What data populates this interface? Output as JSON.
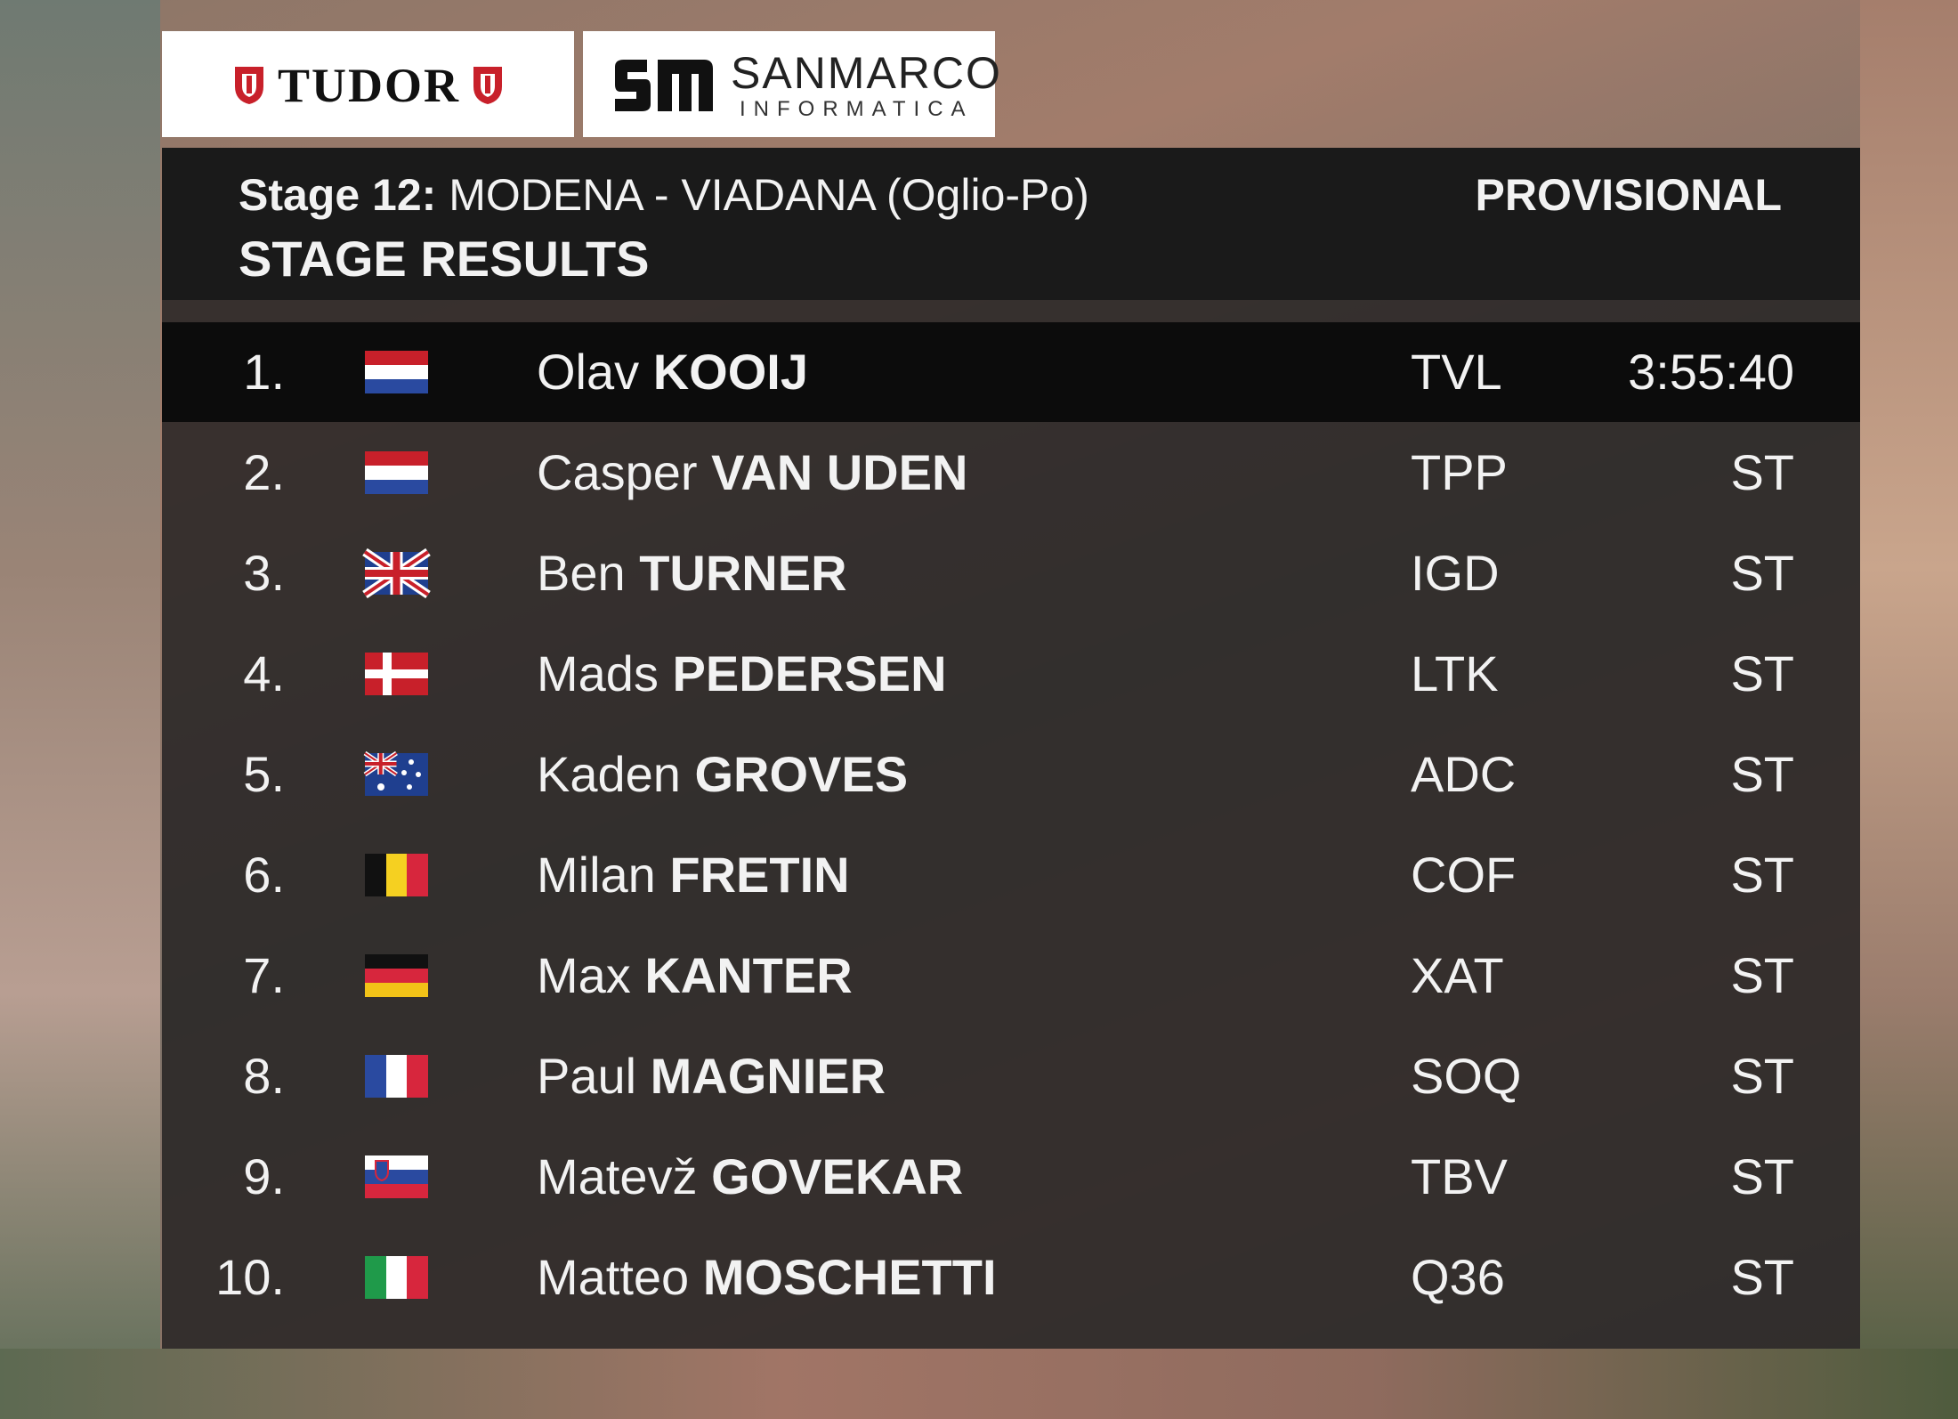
{
  "sponsors": [
    "TUDOR",
    "SANMARCO",
    "INFORMATICA"
  ],
  "header": {
    "stage": "Stage 12:",
    "route": "MODENA - VIADANA (Oglio-Po)",
    "title": "STAGE RESULTS",
    "status": "PROVISIONAL"
  },
  "table": {
    "rows": [
      [
        "1.",
        "Olav",
        "KOOIJ",
        "TVL",
        "3:55:40"
      ],
      [
        "2.",
        "Casper",
        "VAN UDEN",
        "TPP",
        "ST"
      ],
      [
        "3.",
        "Ben",
        "TURNER",
        "IGD",
        "ST"
      ],
      [
        "4.",
        "Mads",
        "PEDERSEN",
        "LTK",
        "ST"
      ],
      [
        "5.",
        "Kaden",
        "GROVES",
        "ADC",
        "ST"
      ],
      [
        "6.",
        "Milan",
        "FRETIN",
        "COF",
        "ST"
      ],
      [
        "7.",
        "Max",
        "KANTER",
        "XAT",
        "ST"
      ],
      [
        "8.",
        "Paul",
        "MAGNIER",
        "SOQ",
        "ST"
      ],
      [
        "9.",
        "Matevž",
        "GOVEKAR",
        "TBV",
        "ST"
      ],
      [
        "10.",
        "Matteo",
        "MOSCHETTI",
        "Q36",
        "ST"
      ]
    ]
  }
}
